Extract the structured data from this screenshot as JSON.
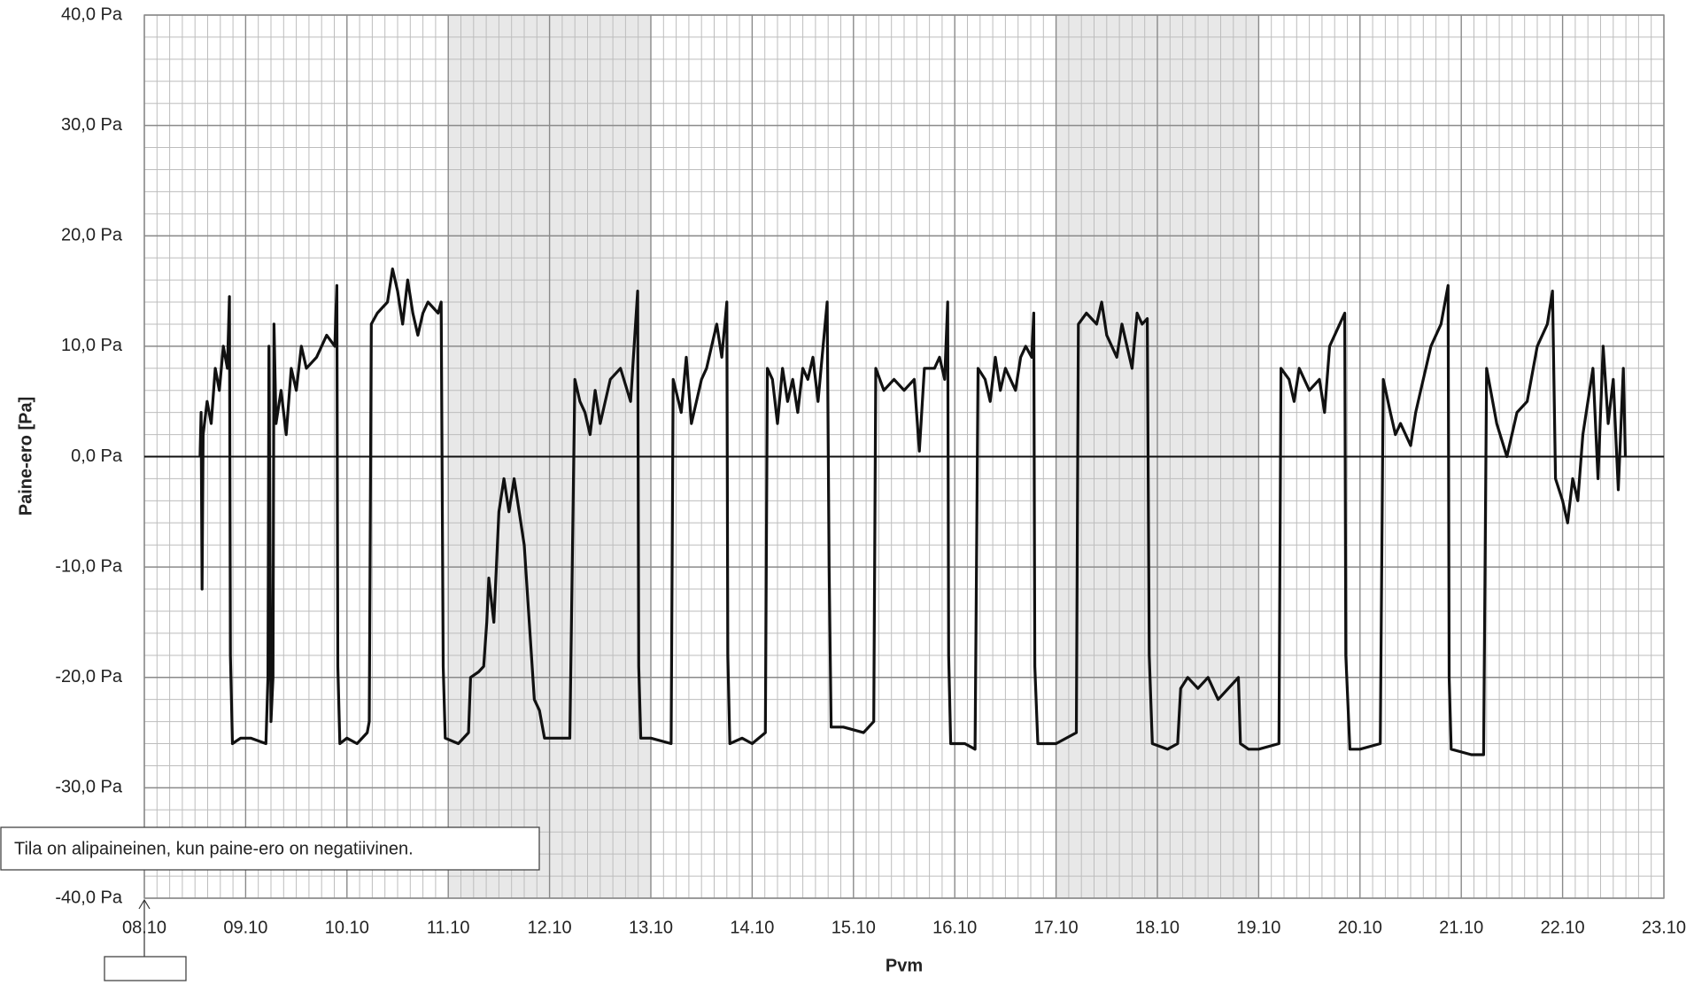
{
  "chart_data": {
    "type": "line",
    "y_label": "Paine-ero [Pa]",
    "x_label": "Pvm",
    "annotation": "Tila on alipaineinen, kun paine-ero on negatiivinen.",
    "color": "#111111",
    "grid": true,
    "zero_line": true,
    "shaded_ranges": [
      [
        11,
        13
      ],
      [
        17,
        19
      ]
    ],
    "shade_color": "#e8e8e8",
    "xlim": [
      8,
      23
    ],
    "xticks": [
      {
        "value": 8,
        "label": "08.10"
      },
      {
        "value": 9,
        "label": "09.10"
      },
      {
        "value": 10,
        "label": "10.10"
      },
      {
        "value": 11,
        "label": "11.10"
      },
      {
        "value": 12,
        "label": "12.10"
      },
      {
        "value": 13,
        "label": "13.10"
      },
      {
        "value": 14,
        "label": "14.10"
      },
      {
        "value": 15,
        "label": "15.10"
      },
      {
        "value": 16,
        "label": "16.10"
      },
      {
        "value": 17,
        "label": "17.10"
      },
      {
        "value": 18,
        "label": "18.10"
      },
      {
        "value": 19,
        "label": "19.10"
      },
      {
        "value": 20,
        "label": "20.10"
      },
      {
        "value": 21,
        "label": "21.10"
      },
      {
        "value": 22,
        "label": "22.10"
      },
      {
        "value": 23,
        "label": "23.10"
      }
    ],
    "ylim": [
      -40,
      40
    ],
    "yticks": [
      {
        "value": -40,
        "label": "-40,0 Pa"
      },
      {
        "value": -30,
        "label": "-30,0 Pa"
      },
      {
        "value": -20,
        "label": "-20,0 Pa"
      },
      {
        "value": -10,
        "label": "-10,0 Pa"
      },
      {
        "value": 0,
        "label": "0,0 Pa"
      },
      {
        "value": 10,
        "label": "10,0 Pa"
      },
      {
        "value": 20,
        "label": "20,0 Pa"
      },
      {
        "value": 30,
        "label": "30,0 Pa"
      },
      {
        "value": 40,
        "label": "40,0 Pa"
      }
    ],
    "x": [
      8.55,
      8.56,
      8.57,
      8.58,
      8.62,
      8.66,
      8.7,
      8.74,
      8.78,
      8.82,
      8.84,
      8.85,
      8.87,
      8.95,
      9.05,
      9.2,
      9.22,
      9.23,
      9.25,
      9.27,
      9.28,
      9.3,
      9.35,
      9.4,
      9.45,
      9.5,
      9.55,
      9.6,
      9.7,
      9.8,
      9.88,
      9.9,
      9.91,
      9.93,
      10.0,
      10.1,
      10.2,
      10.22,
      10.24,
      10.3,
      10.4,
      10.45,
      10.5,
      10.55,
      10.6,
      10.65,
      10.7,
      10.75,
      10.8,
      10.9,
      10.93,
      10.95,
      10.97,
      11.1,
      11.2,
      11.22,
      11.3,
      11.35,
      11.38,
      11.4,
      11.45,
      11.5,
      11.55,
      11.6,
      11.65,
      11.7,
      11.75,
      11.8,
      11.85,
      11.9,
      11.95,
      12.1,
      12.2,
      12.25,
      12.3,
      12.35,
      12.4,
      12.45,
      12.5,
      12.55,
      12.6,
      12.7,
      12.8,
      12.87,
      12.88,
      12.9,
      13.0,
      13.2,
      13.22,
      13.3,
      13.35,
      13.4,
      13.45,
      13.5,
      13.55,
      13.6,
      13.65,
      13.7,
      13.75,
      13.76,
      13.78,
      13.9,
      14.0,
      14.13,
      14.15,
      14.2,
      14.25,
      14.3,
      14.35,
      14.4,
      14.45,
      14.5,
      14.55,
      14.6,
      14.65,
      14.7,
      14.74,
      14.76,
      14.78,
      14.9,
      15.1,
      15.2,
      15.22,
      15.3,
      15.4,
      15.5,
      15.6,
      15.65,
      15.7,
      15.8,
      15.85,
      15.9,
      15.93,
      15.94,
      15.96,
      16.1,
      16.2,
      16.23,
      16.3,
      16.35,
      16.4,
      16.45,
      16.5,
      16.55,
      16.6,
      16.65,
      16.7,
      16.76,
      16.78,
      16.79,
      16.82,
      17.0,
      17.2,
      17.22,
      17.3,
      17.4,
      17.45,
      17.5,
      17.6,
      17.65,
      17.75,
      17.8,
      17.85,
      17.9,
      17.92,
      17.95,
      18.1,
      18.2,
      18.23,
      18.3,
      18.4,
      18.5,
      18.6,
      18.7,
      18.8,
      18.82,
      18.9,
      19.0,
      19.2,
      19.22,
      19.3,
      19.35,
      19.4,
      19.5,
      19.6,
      19.65,
      19.7,
      19.75,
      19.8,
      19.85,
      19.86,
      19.9,
      20.0,
      20.2,
      20.23,
      20.3,
      20.35,
      20.4,
      20.5,
      20.55,
      20.6,
      20.65,
      20.7,
      20.8,
      20.87,
      20.88,
      20.9,
      21.1,
      21.22,
      21.25,
      21.35,
      21.45,
      21.55,
      21.65,
      21.75,
      21.85,
      21.9,
      21.93,
      22.0,
      22.05,
      22.1,
      22.15,
      22.2,
      22.3,
      22.35,
      22.4,
      22.45,
      22.5,
      22.55,
      22.6,
      22.62
    ],
    "values": [
      0,
      4,
      -12,
      2,
      5,
      3,
      8,
      6,
      10,
      8,
      14.5,
      -18,
      -26,
      -25.5,
      -25.5,
      -26,
      -20,
      10,
      -24,
      -20,
      12,
      3,
      6,
      2,
      8,
      6,
      10,
      8,
      9,
      11,
      10,
      15.5,
      -19,
      -26,
      -25.5,
      -26,
      -25,
      -24,
      12,
      13,
      14,
      17,
      15,
      12,
      16,
      13,
      11,
      13,
      14,
      13,
      14,
      -19,
      -25.5,
      -26,
      -25,
      -20,
      -19.5,
      -19,
      -15,
      -11,
      -15,
      -5,
      -2,
      -5,
      -2,
      -5,
      -8,
      -15,
      -22,
      -23,
      -25.5,
      -25.5,
      -25.5,
      7,
      5,
      4,
      2,
      6,
      3,
      5,
      7,
      8,
      5,
      15,
      -19,
      -25.5,
      -25.5,
      -26,
      7,
      4,
      9,
      3,
      5,
      7,
      8,
      10,
      12,
      9,
      14,
      -18,
      -26,
      -25.5,
      -26,
      -25,
      8,
      7,
      3,
      8,
      5,
      7,
      4,
      8,
      7,
      9,
      5,
      10,
      14,
      -10,
      -24.5,
      -24.5,
      -25,
      -24,
      8,
      6,
      7,
      6,
      7,
      0.5,
      8,
      8,
      9,
      7,
      14,
      -18,
      -26,
      -26,
      -26.5,
      8,
      7,
      5,
      9,
      6,
      8,
      7,
      6,
      9,
      10,
      9,
      13,
      -19,
      -26,
      -26,
      -25,
      12,
      13,
      12,
      14,
      11,
      9,
      12,
      8,
      13,
      12,
      12.5,
      -18,
      -26,
      -26.5,
      -26,
      -21,
      -20,
      -21,
      -20,
      -22,
      -21,
      -20,
      -26,
      -26.5,
      -26.5,
      -26,
      8,
      7,
      5,
      8,
      6,
      7,
      4,
      10,
      11,
      12,
      13,
      -18,
      -26.5,
      -26.5,
      -26,
      7,
      4,
      2,
      3,
      1,
      4,
      6,
      8,
      10,
      12,
      15.5,
      -20,
      -26.5,
      -27,
      -27,
      8,
      3,
      0,
      4,
      5,
      10,
      12,
      15,
      -2,
      -4,
      -6,
      -2,
      -4,
      2,
      8,
      -2,
      10,
      3,
      7,
      -3,
      8,
      0
    ]
  }
}
